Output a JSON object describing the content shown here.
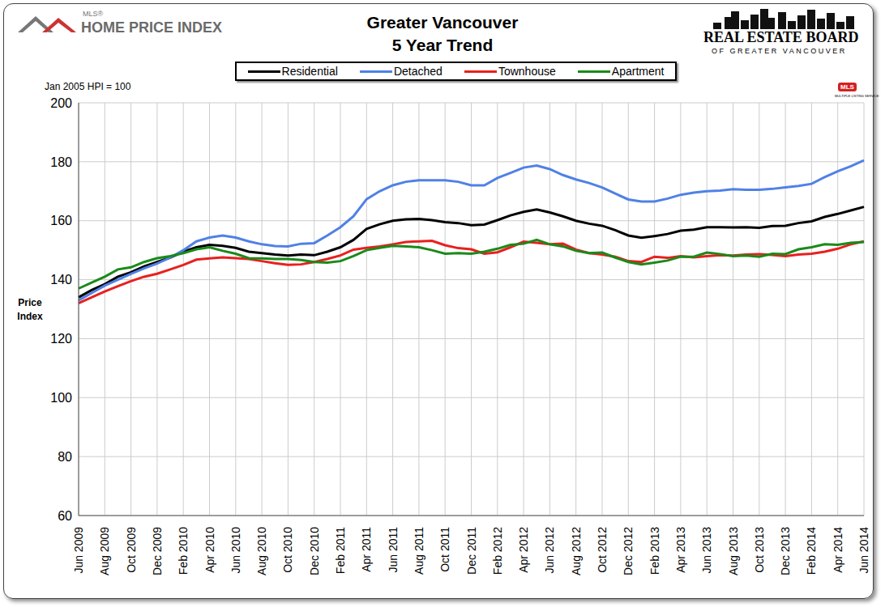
{
  "chart_data": {
    "type": "line",
    "title": "Greater Vancouver",
    "subtitle": "5 Year Trend",
    "y_label": "Price Index",
    "annotations": [
      "Jan 2005 HPI = 100",
      "MLS®",
      "HOME PRICE INDEX",
      "REAL ESTATE BOARD",
      "OF GREATER VANCOUVER",
      "MLS",
      "MULTIPLE LISTING SERVICE"
    ],
    "categories": [
      "Jun 2009",
      null,
      "Aug 2009",
      null,
      "Oct 2009",
      null,
      "Dec 2009",
      null,
      "Feb 2010",
      null,
      "Apr 2010",
      null,
      "Jun 2010",
      null,
      "Aug 2010",
      null,
      "Oct 2010",
      null,
      "Dec 2010",
      null,
      "Feb 2011",
      null,
      "Apr 2011",
      null,
      "Jun 2011",
      null,
      "Aug 2011",
      null,
      "Oct 2011",
      null,
      "Dec 2011",
      null,
      "Feb 2012",
      null,
      "Apr 2012",
      null,
      "Jun 2012",
      null,
      "Aug 2012",
      null,
      "Oct 2012",
      null,
      "Dec 2012",
      null,
      "Feb 2013",
      null,
      "Apr 2013",
      null,
      "Jun 2013",
      null,
      "Aug 2013",
      null,
      "Oct 2013",
      null,
      "Dec 2013",
      null,
      "Feb 2014",
      null,
      "Apr 2014",
      null,
      "Jun 2014"
    ],
    "series": [
      {
        "name": "Residential",
        "color": "#000000",
        "values": [
          134,
          136.5,
          138.5,
          141,
          142.5,
          144.5,
          146,
          147.5,
          149.5,
          151,
          151.8,
          151.5,
          150.8,
          149.5,
          149,
          148.5,
          148.2,
          148.5,
          148.3,
          149.5,
          151,
          153.5,
          157.2,
          158.8,
          160,
          160.5,
          160.6,
          160.2,
          159.5,
          159.2,
          158.5,
          158.7,
          160.2,
          161.8,
          163,
          163.8,
          162.8,
          161.5,
          160,
          159,
          158.3,
          156.8,
          155,
          154.2,
          154.8,
          155.5,
          156.6,
          157,
          157.8,
          157.8,
          157.7,
          157.8,
          157.6,
          158.2,
          158.3,
          159.2,
          159.8,
          161.3,
          162.3,
          163.5,
          164.7
        ]
      },
      {
        "name": "Detached",
        "color": "#4f81e6",
        "values": [
          133,
          135.5,
          138,
          140,
          142,
          143.8,
          145.5,
          147.5,
          150,
          153,
          154.3,
          155,
          154.3,
          153,
          152,
          151.4,
          151.3,
          152.2,
          152.4,
          155,
          157.8,
          161.5,
          167.3,
          170,
          172,
          173.2,
          173.7,
          173.7,
          173.7,
          173.2,
          172,
          172,
          174.5,
          176.2,
          178,
          178.7,
          177.5,
          175.5,
          174,
          172.8,
          171.3,
          169.2,
          167.2,
          166.5,
          166.5,
          167.5,
          168.8,
          169.5,
          170,
          170.2,
          170.7,
          170.5,
          170.5,
          170.8,
          171.3,
          171.8,
          172.5,
          174.8,
          176.8,
          178.5,
          180.5
        ]
      },
      {
        "name": "Townhouse",
        "color": "#e8201e",
        "values": [
          132,
          134,
          136,
          137.8,
          139.5,
          141,
          142,
          143.5,
          145,
          146.8,
          147.2,
          147.6,
          147.3,
          147,
          146.3,
          145.6,
          145,
          145.2,
          146,
          147,
          148.2,
          150.2,
          150.8,
          151.3,
          152,
          152.8,
          153,
          153.2,
          151.7,
          150.7,
          150.3,
          148.8,
          149.3,
          151,
          152.9,
          152.5,
          152,
          152.2,
          150.2,
          149,
          148.5,
          147.8,
          146.3,
          146,
          147.8,
          147.4,
          148,
          147.6,
          148,
          148.3,
          148.2,
          148.5,
          148.7,
          148.4,
          148,
          148.5,
          148.8,
          149.5,
          150.5,
          152,
          153
        ]
      },
      {
        "name": "Apartment",
        "color": "#1a8a1a",
        "values": [
          137,
          139,
          141,
          143.5,
          144.2,
          146,
          147.3,
          148,
          149,
          150.3,
          151,
          149.8,
          148.8,
          147.3,
          147.2,
          147,
          147,
          146.7,
          146,
          145.8,
          146.3,
          148,
          150,
          150.8,
          151.5,
          151.3,
          151,
          150,
          148.8,
          149,
          148.8,
          149.5,
          150.5,
          151.8,
          152.2,
          153.5,
          152,
          151.3,
          149.8,
          149,
          149.2,
          147.5,
          146,
          145.2,
          145.8,
          146.5,
          147.8,
          147.8,
          149.2,
          148.7,
          148,
          148.2,
          147.8,
          148.8,
          148.7,
          150.3,
          151,
          152,
          151.8,
          152.5,
          152.8
        ]
      }
    ],
    "ylim": [
      60,
      200
    ],
    "yticks": [
      60,
      80,
      100,
      120,
      140,
      160,
      180,
      200
    ],
    "grid": true,
    "legend": "top"
  }
}
